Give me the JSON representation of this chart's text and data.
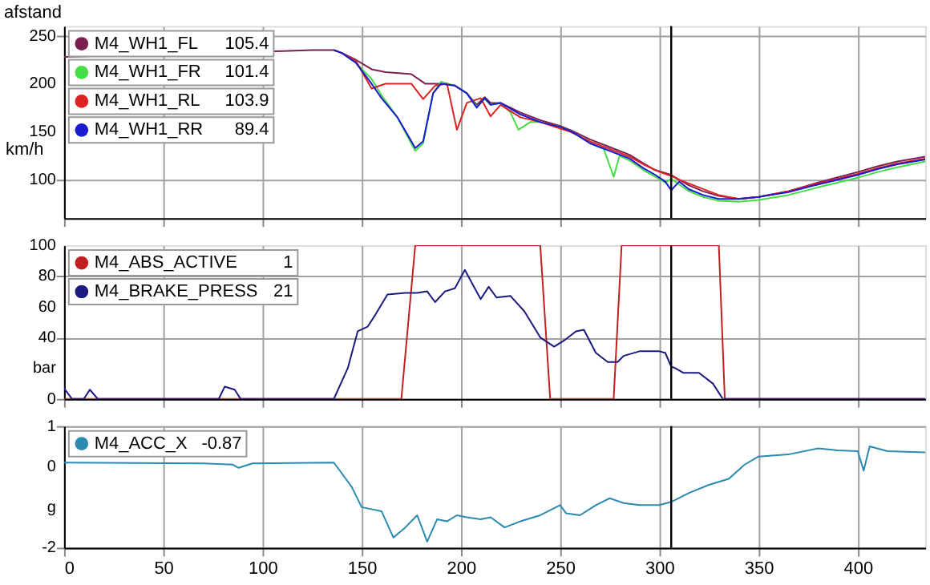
{
  "chart_data": [
    {
      "type": "line",
      "title": "afstand",
      "ylabel": "km/h",
      "xlim": [
        0,
        434
      ],
      "xticks": [
        0,
        50,
        100,
        150,
        200,
        250,
        300,
        350,
        400
      ],
      "ylim": [
        60,
        260
      ],
      "yticks": [
        100,
        150,
        200,
        250
      ],
      "grid": true,
      "legend": "top left",
      "tick_labels": "y",
      "marker": "none",
      "line_style": "solid",
      "annotations": [
        "105.4",
        "101.4",
        "103.9",
        "89.4"
      ],
      "ref_lines": [
        {
          "axis": "x",
          "value": 306,
          "color": "#000000"
        }
      ],
      "series": [
        {
          "name": "M4_WH1_FL",
          "color": "#7a1f4f",
          "x": [
            0,
            110,
            125,
            136,
            140,
            147,
            155,
            162,
            175,
            182,
            190,
            197,
            203,
            208,
            212,
            215,
            220,
            230,
            240,
            250,
            256,
            265,
            275,
            285,
            292,
            298,
            303,
            306,
            310,
            315,
            322,
            330,
            340,
            350,
            365,
            380,
            400,
            410,
            420,
            434
          ],
          "values": [
            228,
            234,
            235,
            235,
            232,
            225,
            215,
            212,
            210,
            200,
            200,
            198,
            190,
            178,
            186,
            180,
            180,
            170,
            162,
            156,
            151,
            142,
            134,
            126,
            117,
            110,
            107,
            105,
            100,
            94,
            88,
            83,
            80,
            82,
            88,
            97,
            108,
            114,
            119,
            124
          ]
        },
        {
          "name": "M4_WH1_FR",
          "color": "#44dd44",
          "x": [
            136,
            140,
            147,
            155,
            160,
            168,
            177,
            181,
            186,
            190,
            197,
            203,
            208,
            212,
            215,
            220,
            225,
            229,
            235,
            240,
            250,
            256,
            265,
            272,
            277,
            280,
            285,
            292,
            298,
            303,
            306,
            310,
            315,
            322,
            330,
            340,
            350,
            365,
            380,
            400,
            410,
            420,
            434
          ],
          "values": [
            235,
            232,
            222,
            205,
            188,
            165,
            130,
            138,
            190,
            202,
            198,
            190,
            176,
            184,
            178,
            180,
            170,
            152,
            160,
            160,
            155,
            150,
            138,
            132,
            103,
            125,
            120,
            110,
            103,
            97,
            101,
            95,
            88,
            82,
            78,
            77,
            79,
            84,
            92,
            102,
            108,
            113,
            119
          ]
        },
        {
          "name": "M4_WH1_RL",
          "color": "#dd2222",
          "x": [
            136,
            140,
            147,
            155,
            162,
            175,
            181,
            187,
            193,
            198,
            203,
            210,
            215,
            220,
            230,
            240,
            255,
            265,
            275,
            285,
            292,
            298,
            303,
            306,
            310,
            320,
            330,
            340,
            350,
            365,
            380,
            400,
            410,
            420,
            434
          ],
          "values": [
            235,
            232,
            224,
            195,
            200,
            200,
            184,
            198,
            200,
            152,
            180,
            185,
            166,
            178,
            165,
            160,
            150,
            140,
            132,
            124,
            116,
            110,
            106,
            104,
            100,
            92,
            84,
            80,
            82,
            88,
            96,
            106,
            112,
            117,
            122
          ]
        },
        {
          "name": "M4_WH1_RR",
          "color": "#1a1ad0",
          "x": [
            136,
            140,
            147,
            155,
            160,
            168,
            177,
            181,
            186,
            190,
            197,
            203,
            208,
            212,
            215,
            220,
            230,
            240,
            250,
            256,
            265,
            275,
            285,
            292,
            298,
            303,
            306,
            310,
            315,
            322,
            330,
            340,
            350,
            365,
            380,
            400,
            410,
            420,
            434
          ],
          "values": [
            235,
            232,
            222,
            200,
            185,
            165,
            133,
            140,
            190,
            200,
            198,
            190,
            175,
            185,
            178,
            180,
            168,
            160,
            155,
            150,
            138,
            130,
            122,
            112,
            105,
            98,
            89,
            98,
            90,
            84,
            80,
            80,
            82,
            87,
            95,
            105,
            111,
            116,
            121
          ]
        }
      ]
    },
    {
      "type": "line",
      "xlim": [
        0,
        434
      ],
      "xticks": [
        0,
        50,
        100,
        150,
        200,
        250,
        300,
        350,
        400
      ],
      "ylim": [
        0,
        100
      ],
      "yticks": [
        0,
        {
          "value": 20,
          "label": "bar"
        },
        40,
        60,
        80,
        100
      ],
      "grid": true,
      "legend": "top left",
      "tick_labels": "y",
      "marker": "none",
      "line_style": "solid",
      "annotations": [
        "1",
        "21"
      ],
      "ref_lines": [
        {
          "axis": "x",
          "value": 306,
          "color": "#000000"
        }
      ],
      "series": [
        {
          "name": "M4_ABS_ACTIVE",
          "color": "#c02020",
          "x": [
            0,
            170,
            177,
            240,
            245,
            277,
            281,
            330,
            333,
            434
          ],
          "values": [
            0,
            0,
            100,
            100,
            0,
            0,
            100,
            100,
            0,
            0
          ]
        },
        {
          "name": "M4_BRAKE_PRESS",
          "color": "#1a1a80",
          "x": [
            0,
            4,
            10,
            13,
            17,
            78,
            81,
            86,
            89,
            136,
            143,
            148,
            153,
            157,
            163,
            172,
            178,
            183,
            187,
            192,
            197,
            202,
            207,
            210,
            214,
            218,
            225,
            232,
            240,
            247,
            252,
            258,
            262,
            268,
            274,
            279,
            282,
            290,
            300,
            303,
            306,
            308,
            312,
            320,
            327,
            332,
            434
          ],
          "values": [
            7,
            0,
            0,
            6,
            0,
            0,
            8,
            6,
            0,
            0,
            20,
            44,
            47,
            55,
            68,
            69,
            69,
            70,
            63,
            70,
            72,
            84,
            72,
            65,
            73,
            66,
            67,
            57,
            40,
            34,
            38,
            44,
            45,
            30,
            24,
            24,
            28,
            31,
            31,
            30,
            21,
            20,
            17,
            17,
            10,
            0,
            0
          ]
        }
      ]
    },
    {
      "type": "line",
      "xlim": [
        0,
        434
      ],
      "xticks": [
        0,
        50,
        100,
        150,
        200,
        250,
        300,
        350,
        400
      ],
      "ylim": [
        -2,
        1
      ],
      "yticks": [
        -2,
        {
          "value": -1,
          "label": "g"
        },
        0,
        1
      ],
      "grid": true,
      "legend": "top left",
      "marker": "none",
      "line_style": "solid",
      "annotations": [
        "-0.87"
      ],
      "ref_lines": [
        {
          "axis": "x",
          "value": 306,
          "color": "#000000"
        }
      ],
      "series": [
        {
          "name": "M4_ACC_X",
          "color": "#2a8ab0",
          "x": [
            0,
            70,
            85,
            88,
            95,
            136,
            145,
            150,
            155,
            160,
            166,
            172,
            178,
            183,
            188,
            193,
            198,
            203,
            210,
            215,
            222,
            230,
            240,
            250,
            253,
            260,
            268,
            275,
            282,
            290,
            300,
            306,
            315,
            325,
            335,
            343,
            350,
            365,
            380,
            390,
            400,
            403,
            406,
            415,
            434
          ],
          "values": [
            0.1,
            0.08,
            0.05,
            -0.03,
            0.08,
            0.1,
            -0.5,
            -1.0,
            -1.05,
            -1.1,
            -1.75,
            -1.5,
            -1.2,
            -1.85,
            -1.3,
            -1.35,
            -1.2,
            -1.25,
            -1.3,
            -1.25,
            -1.5,
            -1.35,
            -1.2,
            -0.95,
            -1.15,
            -1.2,
            -0.95,
            -0.78,
            -0.9,
            -0.95,
            -0.95,
            -0.87,
            -0.65,
            -0.45,
            -0.3,
            0.05,
            0.25,
            0.3,
            0.45,
            0.4,
            0.38,
            -0.1,
            0.5,
            0.38,
            0.35
          ]
        }
      ]
    }
  ]
}
